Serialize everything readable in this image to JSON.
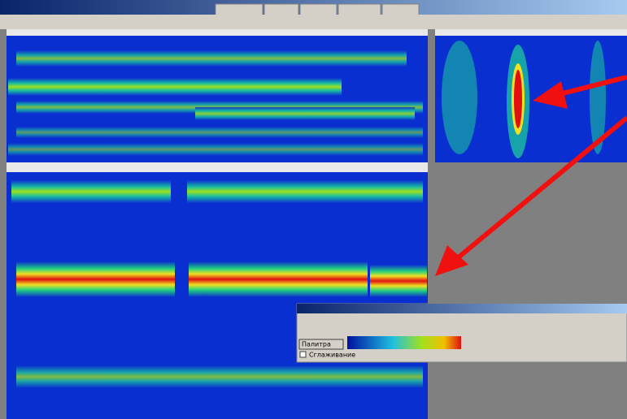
{
  "dialog": {
    "palette_button": "Палитра",
    "smoothing": "Сглаживание"
  }
}
